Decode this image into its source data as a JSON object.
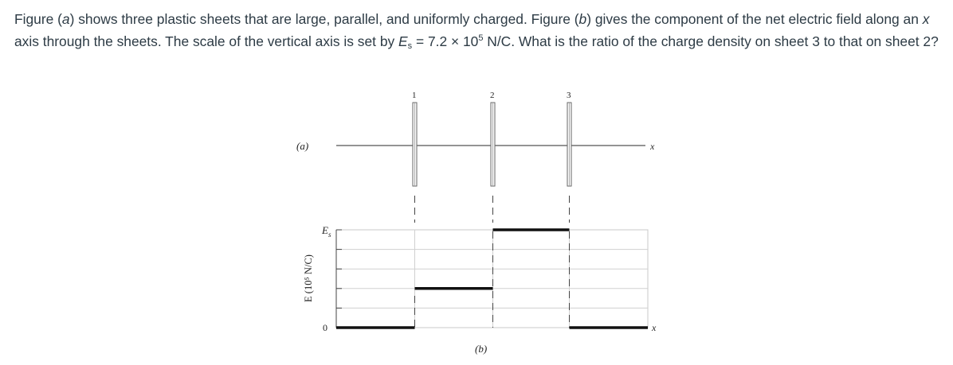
{
  "question": {
    "p1": "Figure (",
    "fig_a": "a",
    "p2": ") shows three plastic sheets that are large, parallel, and uniformly charged. Figure (",
    "fig_b": "b",
    "p3": ") gives the component of the net electric field along an ",
    "x": "x",
    "p4": " axis through the sheets. The scale of the vertical axis is set by ",
    "E": "E",
    "s": "s",
    "p5": " = 7.2 × 10",
    "exp": "5",
    "p6": " N/C. What is the ratio of the charge density on sheet 3 to that on sheet 2?"
  },
  "figure": {
    "panel_a_label": "(a)",
    "panel_b_label": "(b)",
    "sheet_labels": [
      "1",
      "2",
      "3"
    ],
    "x_label_a": "x",
    "x_label_b": "x",
    "y_axis_label": "E (10⁵ N/C)",
    "y_tick_zero": "0",
    "y_tick_top_main": "E",
    "y_tick_top_sub": "s"
  },
  "chart_data": {
    "type": "line",
    "ylabel": "E (10⁵ N/C)",
    "yticks": [
      "0",
      "Es"
    ],
    "ylim": [
      0,
      5
    ],
    "sheet_positions": [
      1,
      2,
      3
    ],
    "xlim": [
      0,
      4
    ],
    "series": [
      {
        "x": [
          0,
          1,
          1,
          2,
          2,
          3,
          3,
          4
        ],
        "y": [
          0,
          0,
          2,
          2,
          5,
          5,
          0,
          0
        ]
      }
    ]
  }
}
